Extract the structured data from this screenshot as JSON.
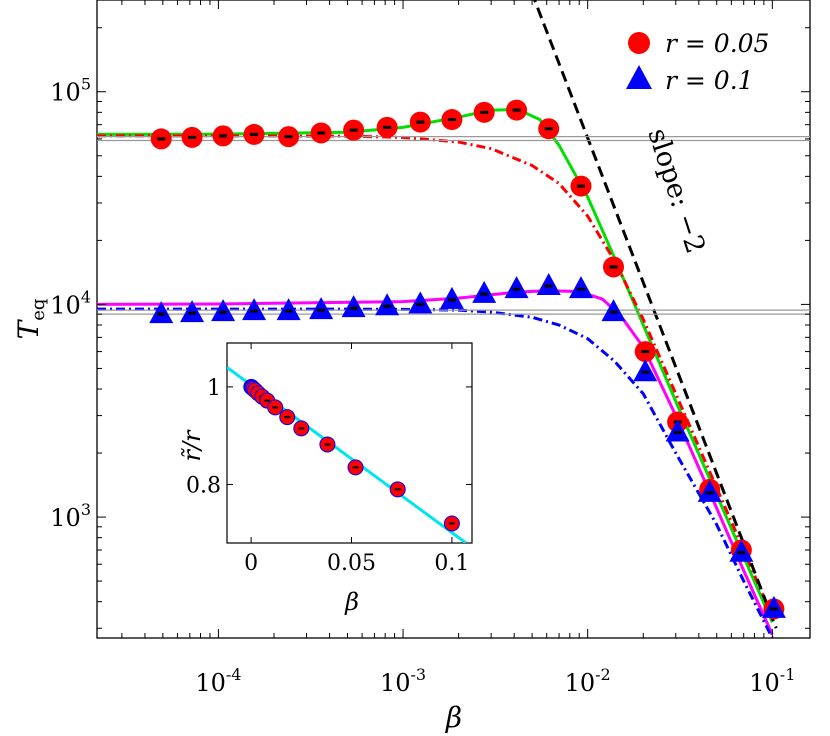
{
  "chart_data": [
    {
      "type": "scatter",
      "scale": "log-log",
      "xlabel": "β",
      "ylabel": "T",
      "ylabel_sub": "eq",
      "xlim": [
        2.2e-05,
        0.16
      ],
      "ylim": [
        270,
        270000
      ],
      "x_ticks": [
        {
          "value": 0.0001,
          "base": "10",
          "exp": "-4"
        },
        {
          "value": 0.001,
          "base": "10",
          "exp": "-3"
        },
        {
          "value": 0.01,
          "base": "10",
          "exp": "-2"
        },
        {
          "value": 0.1,
          "base": "10",
          "exp": "-1"
        }
      ],
      "y_ticks": [
        {
          "value": 1000,
          "base": "10",
          "exp": "3"
        },
        {
          "value": 10000,
          "base": "10",
          "exp": "4"
        },
        {
          "value": 100000,
          "base": "10",
          "exp": "5"
        }
      ],
      "annotation": "slope: −2",
      "legend": {
        "position": "top-right",
        "entries": [
          {
            "label": "r = 0.05",
            "marker": "circle",
            "color": "#ff0000"
          },
          {
            "label": "r = 0.1",
            "marker": "triangle",
            "color": "#0000ff"
          }
        ]
      },
      "series": [
        {
          "name": "r = 0.05",
          "marker": "circle",
          "color": "#ff0000",
          "x": [
            4.9e-05,
            7.2e-05,
            0.000106,
            0.000156,
            0.00024,
            0.00036,
            0.00054,
            0.00082,
            0.00124,
            0.00184,
            0.00275,
            0.00412,
            0.00615,
            0.0092,
            0.0138,
            0.0205,
            0.0307,
            0.0458,
            0.068,
            0.102
          ],
          "y": [
            60000,
            61000,
            62000,
            63000,
            61500,
            64000,
            66000,
            68000,
            72000,
            74000,
            80000,
            82000,
            67000,
            36000,
            15000,
            6000,
            2800,
            1350,
            700,
            370
          ]
        },
        {
          "name": "r = 0.1",
          "marker": "triangle",
          "color": "#0000ff",
          "x": [
            4.9e-05,
            7.2e-05,
            0.000106,
            0.000156,
            0.00024,
            0.00036,
            0.00054,
            0.00082,
            0.00124,
            0.00184,
            0.00275,
            0.00412,
            0.00615,
            0.0092,
            0.0138,
            0.0205,
            0.0307,
            0.0458,
            0.068,
            0.102
          ],
          "y": [
            9000,
            9100,
            9200,
            9300,
            9300,
            9400,
            9600,
            9800,
            10000,
            10500,
            11200,
            11800,
            12200,
            11800,
            9200,
            4800,
            2500,
            1300,
            680,
            370
          ]
        }
      ],
      "lines": [
        {
          "name": "fit r = 0.05",
          "style": "solid",
          "color": "#00e000",
          "x": [
            2.2e-05,
            0.0001,
            0.0005,
            0.001,
            0.002,
            0.003,
            0.0042,
            0.0055,
            0.007,
            0.01,
            0.014,
            0.02,
            0.03,
            0.05,
            0.07,
            0.1
          ],
          "y": [
            63000,
            63200,
            64500,
            68000,
            76000,
            82000,
            82500,
            74000,
            56000,
            32000,
            16500,
            8000,
            3500,
            1270,
            650,
            320
          ]
        },
        {
          "name": "fit r = 0.1",
          "style": "solid",
          "color": "#ff00ff",
          "x": [
            2.2e-05,
            0.0001,
            0.001,
            0.002,
            0.003,
            0.004,
            0.006,
            0.009,
            0.012,
            0.015,
            0.02,
            0.03,
            0.05,
            0.07,
            0.1
          ],
          "y": [
            10000,
            10050,
            10300,
            10700,
            11100,
            11400,
            11600,
            11500,
            10600,
            8900,
            6300,
            3000,
            1100,
            560,
            280
          ]
        },
        {
          "name": "model r = 0.05",
          "style": "dashdot",
          "color": "#ff0000",
          "x": [
            2.2e-05,
            0.0001,
            0.0005,
            0.001,
            0.002,
            0.003,
            0.005,
            0.007,
            0.01,
            0.014,
            0.02,
            0.03,
            0.05,
            0.07,
            0.1
          ],
          "y": [
            62000,
            62000,
            61800,
            61000,
            58000,
            54000,
            45000,
            37000,
            26000,
            16000,
            8500,
            3800,
            1370,
            700,
            340
          ]
        },
        {
          "name": "model r = 0.1",
          "style": "dashdot",
          "color": "#0000ff",
          "x": [
            2.2e-05,
            0.0001,
            0.0005,
            0.001,
            0.002,
            0.003,
            0.005,
            0.007,
            0.01,
            0.014,
            0.02,
            0.03,
            0.05,
            0.07,
            0.1
          ],
          "y": [
            9500,
            9500,
            9500,
            9480,
            9400,
            9200,
            8700,
            8000,
            6900,
            5400,
            3800,
            2000,
            920,
            500,
            270
          ]
        },
        {
          "name": "slope -2",
          "style": "dashed",
          "color": "#000000",
          "x": [
            0.0046,
            0.105
          ],
          "y": [
            350000,
            300
          ]
        },
        {
          "name": "reference r = 0.05 upper",
          "style": "solid",
          "color": "#999999",
          "x": [
            2.2e-05,
            0.16
          ],
          "y": [
            61500,
            61500
          ]
        },
        {
          "name": "reference r = 0.05 lower",
          "style": "solid",
          "color": "#999999",
          "x": [
            2.2e-05,
            0.16
          ],
          "y": [
            59000,
            59000
          ]
        },
        {
          "name": "reference r = 0.1 upper",
          "style": "solid",
          "color": "#999999",
          "x": [
            2.2e-05,
            0.16
          ],
          "y": [
            9400,
            9400
          ]
        },
        {
          "name": "reference r = 0.1 lower",
          "style": "solid",
          "color": "#999999",
          "x": [
            2.2e-05,
            0.16
          ],
          "y": [
            9000,
            9000
          ]
        }
      ]
    },
    {
      "type": "scatter",
      "role": "inset",
      "xlabel": "β",
      "ylabel": "r̃/r",
      "xlim": [
        -0.012,
        0.11
      ],
      "ylim": [
        0.68,
        1.09
      ],
      "x_ticks": [
        {
          "value": 0,
          "label": "0"
        },
        {
          "value": 0.05,
          "label": "0.05"
        },
        {
          "value": 0.1,
          "label": "0.1"
        }
      ],
      "y_ticks": [
        {
          "value": 0.8,
          "label": "0.8"
        },
        {
          "value": 1,
          "label": "1"
        }
      ],
      "series": [
        {
          "name": "r = 0.05",
          "marker": "circle",
          "color": "#ff0000",
          "x": [
            0.0001,
            0.0003,
            0.0006,
            0.0012,
            0.002,
            0.0035,
            0.0055,
            0.008,
            0.012,
            0.018,
            0.025,
            0.038,
            0.052,
            0.073,
            0.1
          ],
          "y": [
            1.0,
            0.999,
            0.998,
            0.996,
            0.993,
            0.987,
            0.98,
            0.972,
            0.958,
            0.938,
            0.915,
            0.882,
            0.835,
            0.79,
            0.72
          ]
        }
      ],
      "lines": [
        {
          "name": "linear fit",
          "style": "solid",
          "color": "#00e5ee",
          "x": [
            -0.012,
            0.107
          ],
          "y": [
            1.04,
            0.68
          ]
        }
      ]
    }
  ]
}
